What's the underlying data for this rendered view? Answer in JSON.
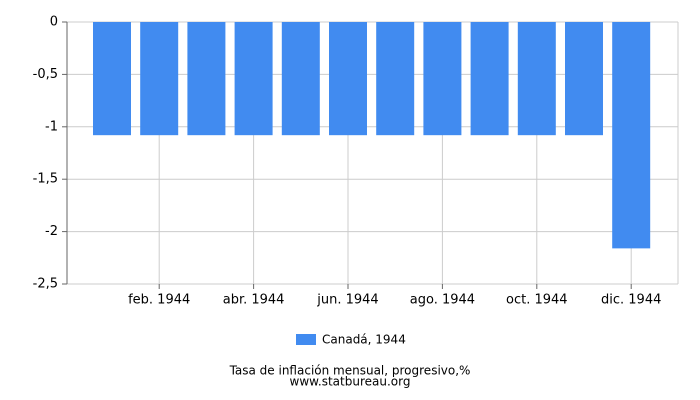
{
  "chart_data": {
    "type": "bar",
    "title": "Tasa de inflación mensual, progresivo,%",
    "source": "www.statbureau.org",
    "categories": [
      null,
      "feb. 1944",
      null,
      "abr. 1944",
      null,
      "jun. 1944",
      null,
      "ago. 1944",
      null,
      "oct. 1944",
      null,
      "dic. 1944"
    ],
    "series": [
      {
        "name": "Canadá, 1944",
        "color": "#418bf0",
        "values": [
          -1.08,
          -1.08,
          -1.08,
          -1.08,
          -1.08,
          -1.08,
          -1.08,
          -1.08,
          -1.08,
          -1.08,
          -1.08,
          -2.16
        ]
      }
    ],
    "ylim": [
      0,
      -2.5
    ],
    "yticks": [
      0,
      {
        "value": -0.5,
        "label": "-0,5"
      },
      -1,
      {
        "value": -1.5,
        "label": "-1,5"
      },
      -2,
      {
        "value": -2.5,
        "label": "-2,5"
      }
    ],
    "grid": true
  }
}
